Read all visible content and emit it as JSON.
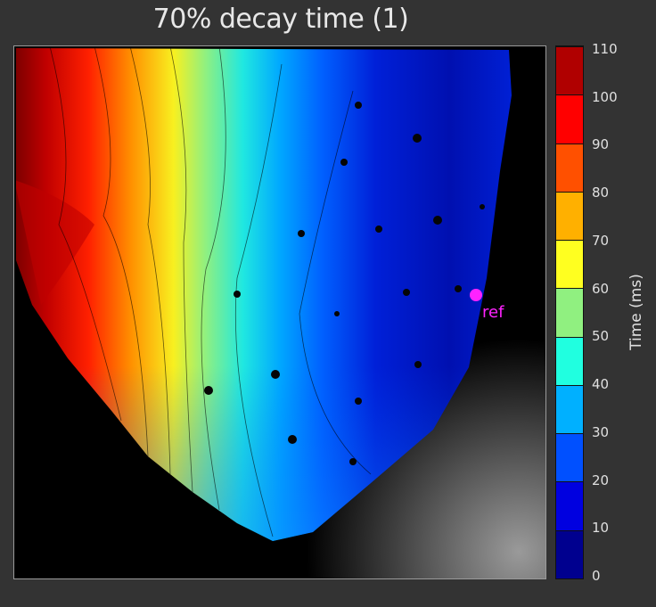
{
  "chart_data": {
    "type": "heatmap",
    "title": "70% decay time (1)",
    "colorbar": {
      "label": "Time (ms)",
      "range": [
        0,
        110
      ],
      "ticks": [
        "0",
        "10",
        "20",
        "30",
        "40",
        "50",
        "60",
        "70",
        "80",
        "90",
        "100",
        "110"
      ],
      "band_colors": [
        "#00008f",
        "#0000e0",
        "#0050ff",
        "#00b0ff",
        "#20ffe0",
        "#90f080",
        "#ffff20",
        "#ffb000",
        "#ff5000",
        "#ff0000",
        "#b00000"
      ]
    },
    "annotation": {
      "label": "ref",
      "color": "#ff22ff"
    },
    "colormap": "jet",
    "value_trend": "high (~105 ms) at left edge decreasing to ~5-15 ms at right/center"
  }
}
